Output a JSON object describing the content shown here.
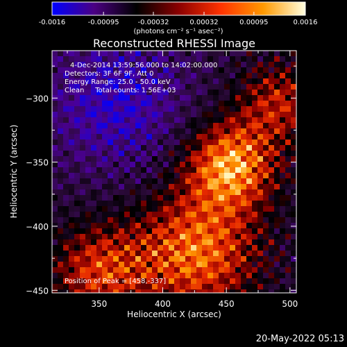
{
  "colorbar": {
    "ticks": [
      "-0.0016",
      "-0.00095",
      "-0.00032",
      "0.00032",
      "0.00095",
      "0.0016"
    ],
    "tick_values": [
      -0.0016,
      -0.00095,
      -0.00032,
      0.00032,
      0.00095,
      0.0016
    ],
    "unit_label": "(photons cm⁻² s⁻¹ asec⁻²)",
    "colors": [
      "#0000ff",
      "#4b0082",
      "#000000",
      "#8b0000",
      "#ff3300",
      "#ff9900",
      "#ffffe0"
    ]
  },
  "chart_data": {
    "type": "heatmap",
    "title": "Reconstructed RHESSI Image",
    "xlabel": "Heliocentric X (arcsec)",
    "ylabel": "Heliocentric Y (arcsec)",
    "xlim": [
      313,
      505
    ],
    "ylim": [
      -452,
      -263
    ],
    "x_ticks": [
      350,
      400,
      450,
      500
    ],
    "y_ticks": [
      -300,
      -350,
      -400,
      -450
    ],
    "annotations": {
      "time": "4-Dec-2014 13:59:56.000 to 14:02:00.000",
      "detectors": "Detectors: 3F 6F 9F, Att 0",
      "energy": "Energy Range: 25.0 - 50.0 keV",
      "method_counts": "Clean     Total counts: 1.56E+03",
      "peak": "Position of Peak = [458,-337]"
    },
    "peak": [
      458,
      -337
    ]
  },
  "footer": {
    "date": "20-May-2022 05:13"
  }
}
